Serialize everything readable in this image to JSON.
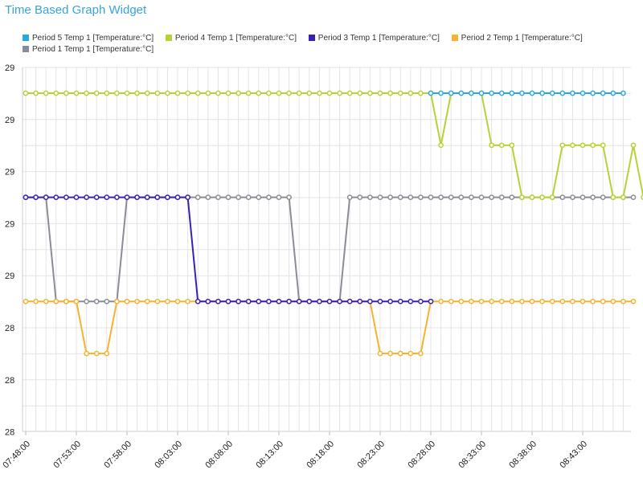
{
  "widget": {
    "title": "Time Based Graph Widget"
  },
  "chart_data": {
    "type": "line",
    "title": "",
    "xlabel": "",
    "ylabel": "",
    "x_tick_labels": [
      "07:48:00",
      "07:53:00",
      "07:58:00",
      "08:03:00",
      "08:08:00",
      "08:13:00",
      "08:18:00",
      "08:23:00",
      "08:28:00",
      "08:33:00",
      "08:38:00",
      "08:43:00"
    ],
    "y_tick_labels": [
      "29",
      "29",
      "29",
      "29",
      "29",
      "28",
      "28",
      "28"
    ],
    "grid": true,
    "legend_position": "top",
    "series": [
      {
        "name": "Period 5 Temp 1 [Temperature:°C]",
        "color": "#2aa9e0",
        "values": [
          null,
          null,
          null,
          null,
          null,
          null,
          null,
          null,
          null,
          null,
          null,
          null,
          null,
          null,
          null,
          null,
          null,
          null,
          null,
          null,
          null,
          null,
          null,
          null,
          null,
          null,
          null,
          null,
          null,
          null,
          null,
          null,
          null,
          null,
          null,
          null,
          null,
          null,
          null,
          null,
          0,
          0,
          0,
          0,
          0,
          0,
          0,
          0,
          0,
          0,
          0,
          0,
          0,
          0,
          0,
          0,
          0,
          0,
          0,
          0
        ]
      },
      {
        "name": "Period 4 Temp 1 [Temperature:°C]",
        "color": "#b5d334",
        "values": [
          0,
          0,
          0,
          0,
          0,
          0,
          0,
          0,
          0,
          0,
          0,
          0,
          0,
          0,
          0,
          0,
          0,
          0,
          0,
          0,
          0,
          0,
          0,
          0,
          0,
          0,
          0,
          0,
          0,
          0,
          0,
          0,
          0,
          0,
          0,
          0,
          0,
          0,
          0,
          0,
          0,
          1,
          0,
          0,
          0,
          0,
          1,
          1,
          1,
          2,
          2,
          2,
          2,
          1,
          1,
          1,
          1,
          1,
          2,
          2,
          1,
          2
        ]
      },
      {
        "name": "Period 3 Temp 1 [Temperature:°C]",
        "color": "#3d1fb8",
        "values": [
          2,
          2,
          2,
          2,
          2,
          2,
          2,
          2,
          2,
          2,
          2,
          2,
          2,
          2,
          2,
          2,
          2,
          4,
          4,
          4,
          4,
          4,
          4,
          4,
          4,
          4,
          4,
          4,
          4,
          4,
          4,
          4,
          4,
          4,
          4,
          4,
          4,
          4,
          4,
          4,
          4
        ]
      },
      {
        "name": "Period 2 Temp 1 [Temperature:°C]",
        "color": "#f5b331",
        "values": [
          4,
          4,
          4,
          4,
          4,
          4,
          5,
          5,
          5,
          4,
          4,
          4,
          4,
          4,
          4,
          4,
          4,
          4,
          4,
          4,
          4,
          4,
          4,
          4,
          4,
          4,
          4,
          4,
          4,
          4,
          4,
          4,
          4,
          4,
          4,
          5,
          5,
          5,
          5,
          5,
          4,
          4,
          4,
          4,
          4,
          4,
          4,
          4,
          4,
          4,
          4,
          4,
          4,
          4,
          4,
          4,
          4,
          4,
          4,
          4,
          4
        ]
      },
      {
        "name": "Period 1 Temp 1 [Temperature:°C]",
        "color": "#8a8d96",
        "values": [
          2,
          2,
          2,
          4,
          4,
          4,
          4,
          4,
          4,
          4,
          2,
          2,
          2,
          2,
          2,
          2,
          2,
          2,
          2,
          2,
          2,
          2,
          2,
          2,
          2,
          2,
          2,
          4,
          4,
          4,
          4,
          4,
          2,
          2,
          2,
          2,
          2,
          2,
          2,
          2,
          2,
          2,
          2,
          2,
          2,
          2,
          2,
          2,
          2,
          2,
          2,
          2,
          2,
          2,
          2,
          2,
          2,
          2,
          2,
          2,
          2
        ]
      }
    ]
  }
}
